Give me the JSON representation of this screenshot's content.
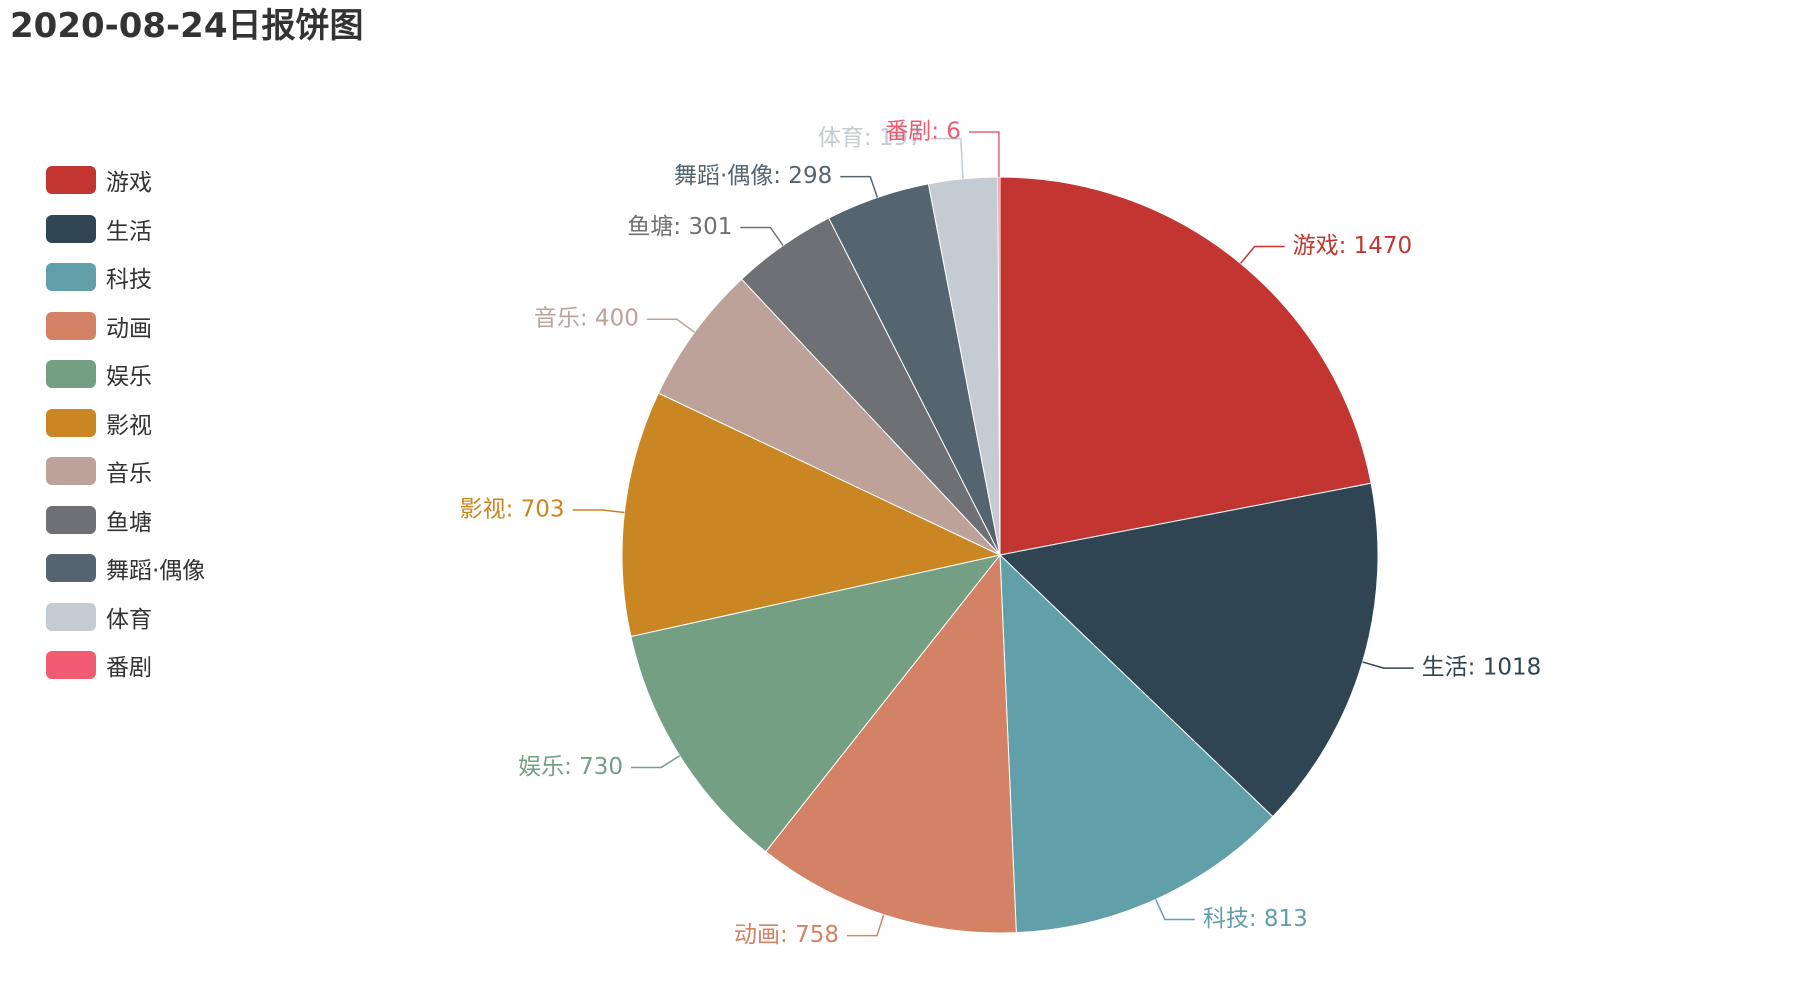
{
  "chart_data": {
    "type": "pie",
    "title": "2020-08-24日报饼图",
    "legend_position": "left",
    "slices": [
      {
        "name": "游戏",
        "value": 1470,
        "color": "#c23531",
        "label": "游戏: 1470"
      },
      {
        "name": "生活",
        "value": 1018,
        "color": "#2f4554",
        "label": "生活: 1018"
      },
      {
        "name": "科技",
        "value": 813,
        "color": "#61a0a8",
        "label": "科技: 813"
      },
      {
        "name": "动画",
        "value": 758,
        "color": "#d48265",
        "label": "动画: 758"
      },
      {
        "name": "娱乐",
        "value": 730,
        "color": "#749f83",
        "label": "娱乐: 730"
      },
      {
        "name": "影视",
        "value": 703,
        "color": "#ca8622",
        "label": "影视: 703"
      },
      {
        "name": "音乐",
        "value": 400,
        "color": "#bda29a",
        "label": "音乐: 400"
      },
      {
        "name": "鱼塘",
        "value": 301,
        "color": "#6e7074",
        "label": "鱼塘: 301"
      },
      {
        "name": "舞蹈·偶像",
        "value": 298,
        "color": "#546570",
        "label": "舞蹈·偶像: 298"
      },
      {
        "name": "体育",
        "value": 197,
        "color": "#c4ccd3",
        "label": "体育: 197"
      },
      {
        "name": "番剧",
        "value": 6,
        "color": "#f05b72",
        "label": "番剧: 6"
      }
    ]
  }
}
